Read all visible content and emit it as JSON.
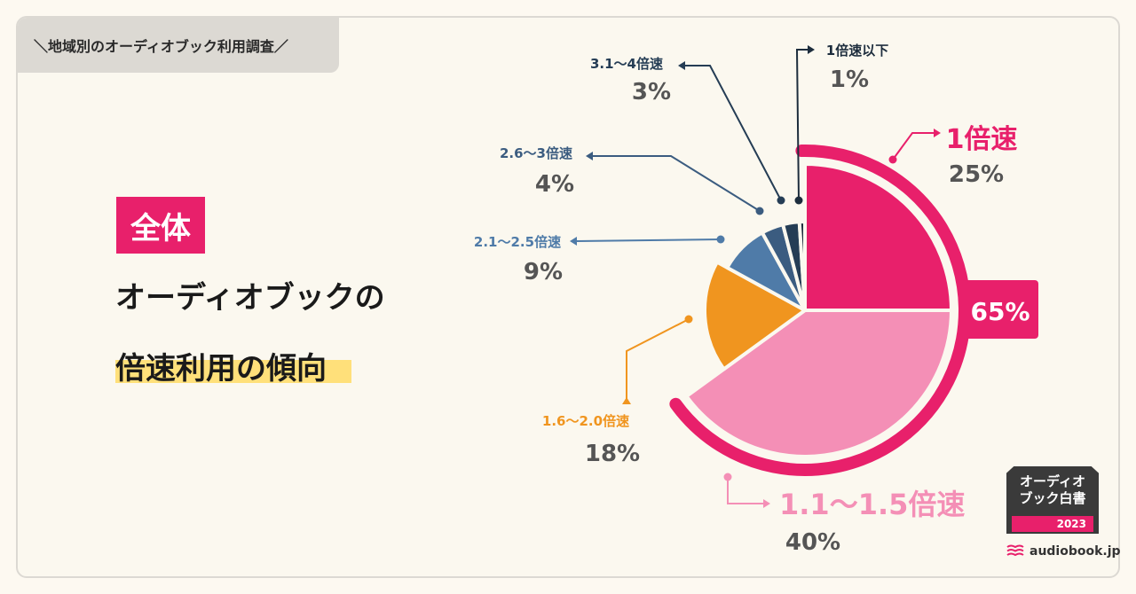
{
  "header": {
    "title": "＼地域別のオーディオブック利用調査／"
  },
  "badge": {
    "label": "全体"
  },
  "title": {
    "line1": "オーディオブックの",
    "line2": "倍速利用の傾向"
  },
  "chart_data": {
    "type": "pie",
    "title": "オーディオブックの倍速利用の傾向",
    "slices": [
      {
        "label": "1倍速",
        "value": 25,
        "value_label": "25%",
        "color": "#e8206b"
      },
      {
        "label": "1.1〜1.5倍速",
        "value": 40,
        "value_label": "40%",
        "color": "#f48fb6"
      },
      {
        "label": "1.6〜2.0倍速",
        "value": 18,
        "value_label": "18%",
        "color": "#f0951f"
      },
      {
        "label": "2.1〜2.5倍速",
        "value": 9,
        "value_label": "9%",
        "color": "#4f7ba8"
      },
      {
        "label": "2.6〜3倍速",
        "value": 4,
        "value_label": "4%",
        "color": "#3b5c80"
      },
      {
        "label": "3.1〜4倍速",
        "value": 3,
        "value_label": "3%",
        "color": "#253d55"
      },
      {
        "label": "1倍速以下",
        "value": 1,
        "value_label": "1%",
        "color": "#1d2d3d"
      }
    ],
    "group": {
      "label": "65%",
      "value": 65,
      "description": "1倍速 + 1.1〜1.5倍速",
      "color": "#e8206b"
    }
  },
  "logo": {
    "line1": "オーディオ",
    "line2": "ブック白書",
    "year": "2023"
  },
  "brand": {
    "name": "audiobook.jp"
  }
}
